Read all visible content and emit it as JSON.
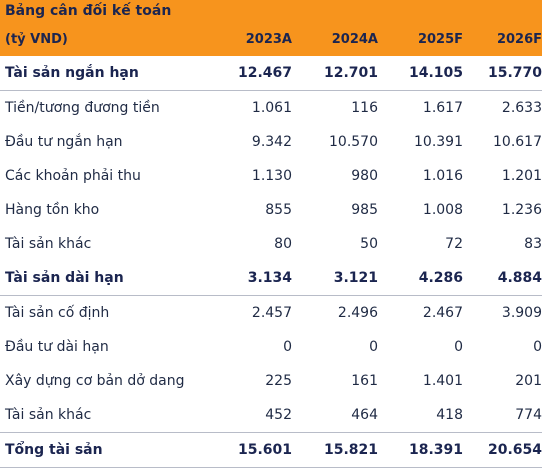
{
  "header": {
    "title": "Bảng cân đối kế toán"
  },
  "table": {
    "columns": [
      "(tỷ VND)",
      "2023A",
      "2024A",
      "2025F",
      "2026F"
    ],
    "rows": [
      {
        "bold": true,
        "cells": [
          "Tài sản ngắn hạn",
          "12.467",
          "12.701",
          "14.105",
          "15.770"
        ]
      },
      {
        "bold": false,
        "cells": [
          "Tiền/tương đương tiền",
          "1.061",
          "116",
          "1.617",
          "2.633"
        ]
      },
      {
        "bold": false,
        "cells": [
          "Đầu tư ngắn hạn",
          "9.342",
          "10.570",
          "10.391",
          "10.617"
        ]
      },
      {
        "bold": false,
        "cells": [
          "Các khoản phải thu",
          "1.130",
          "980",
          "1.016",
          "1.201"
        ]
      },
      {
        "bold": false,
        "cells": [
          "Hàng tồn kho",
          "855",
          "985",
          "1.008",
          "1.236"
        ]
      },
      {
        "bold": false,
        "cells": [
          "Tài sản khác",
          "80",
          "50",
          "72",
          "83"
        ]
      },
      {
        "bold": true,
        "cells": [
          "Tài sản dài hạn",
          "3.134",
          "3.121",
          "4.286",
          "4.884"
        ]
      },
      {
        "bold": false,
        "cells": [
          "Tài sản cố định",
          "2.457",
          "2.496",
          "2.467",
          "3.909"
        ]
      },
      {
        "bold": false,
        "cells": [
          "Đầu tư dài hạn",
          "0",
          "0",
          "0",
          "0"
        ]
      },
      {
        "bold": false,
        "cells": [
          "Xây dựng cơ bản dở dang",
          "225",
          "161",
          "1.401",
          "201"
        ]
      },
      {
        "bold": false,
        "cells": [
          "Tài sản khác",
          "452",
          "464",
          "418",
          "774"
        ]
      },
      {
        "bold": true,
        "cells": [
          "Tổng tài sản",
          "15.601",
          "15.821",
          "18.391",
          "20.654"
        ]
      }
    ]
  }
}
